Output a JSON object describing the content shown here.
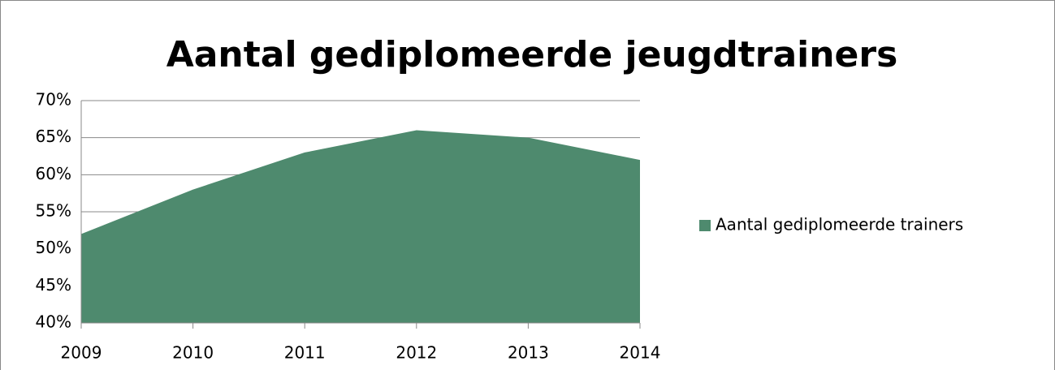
{
  "chart_data": {
    "type": "area",
    "title": "Aantal gediplomeerde jeugdtrainers",
    "categories": [
      "2009",
      "2010",
      "2011",
      "2012",
      "2013",
      "2014"
    ],
    "series": [
      {
        "name": "Aantal gediplomeerde trainers",
        "color": "#4e8a6e",
        "values": [
          52,
          58,
          63,
          66,
          65,
          62
        ]
      }
    ],
    "ylim": [
      40,
      70
    ],
    "yticks": [
      {
        "value": 40,
        "label": "40%"
      },
      {
        "value": 45,
        "label": "45%"
      },
      {
        "value": 50,
        "label": "50%"
      },
      {
        "value": 55,
        "label": "55%"
      },
      {
        "value": 60,
        "label": "60%"
      },
      {
        "value": 65,
        "label": "65%"
      },
      {
        "value": 70,
        "label": "70%"
      }
    ],
    "grid": true,
    "legend": "right"
  }
}
